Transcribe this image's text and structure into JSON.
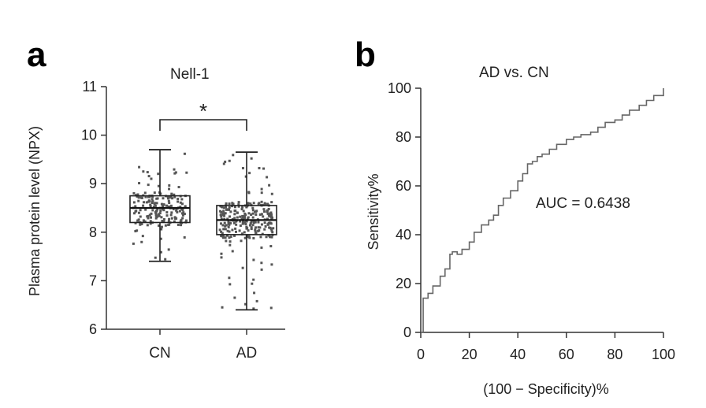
{
  "chart_data": [
    {
      "panel": "a",
      "type": "box",
      "title": "Nell-1",
      "xlabel": "",
      "ylabel": "Plasma protein level (NPX)",
      "ylim": [
        6,
        11
      ],
      "yticks": [
        6,
        7,
        8,
        9,
        10,
        11
      ],
      "categories": [
        "CN",
        "AD"
      ],
      "series": [
        {
          "category": "CN",
          "whisker_low": 7.4,
          "q1": 8.2,
          "median": 8.5,
          "q3": 8.75,
          "whisker_high": 9.7
        },
        {
          "category": "AD",
          "whisker_low": 6.4,
          "q1": 7.95,
          "median": 8.25,
          "q3": 8.55,
          "whisker_high": 9.65
        }
      ],
      "annotations": [
        {
          "type": "significance",
          "between": [
            "CN",
            "AD"
          ],
          "label": "*"
        }
      ],
      "grid": false
    },
    {
      "panel": "b",
      "type": "line",
      "title": "AD vs. CN",
      "xlabel": "(100 − Specificity)%",
      "ylabel": "Sensitivity%",
      "xlim": [
        0,
        100
      ],
      "ylim": [
        0,
        100
      ],
      "xticks": [
        0,
        20,
        40,
        60,
        80,
        100
      ],
      "yticks": [
        0,
        20,
        40,
        60,
        80,
        100
      ],
      "x": [
        0,
        1,
        3,
        5,
        8,
        10,
        12,
        13,
        15,
        17,
        20,
        22,
        25,
        28,
        30,
        32,
        34,
        37,
        40,
        42,
        44,
        46,
        48,
        50,
        53,
        56,
        60,
        63,
        66,
        70,
        73,
        76,
        80,
        83,
        86,
        90,
        93,
        96,
        100
      ],
      "y": [
        0,
        14,
        16,
        19,
        23,
        26,
        32,
        33,
        32,
        34,
        37,
        41,
        44,
        46,
        48,
        52,
        55,
        58,
        62,
        65,
        69,
        70,
        72,
        73,
        75,
        77,
        79,
        80,
        81,
        82,
        84,
        86,
        87,
        89,
        91,
        93,
        95,
        97,
        100
      ],
      "annotations": [
        {
          "label": "AUC = 0.6438"
        }
      ],
      "grid": false
    }
  ],
  "panels": {
    "a": "a",
    "b": "b"
  }
}
